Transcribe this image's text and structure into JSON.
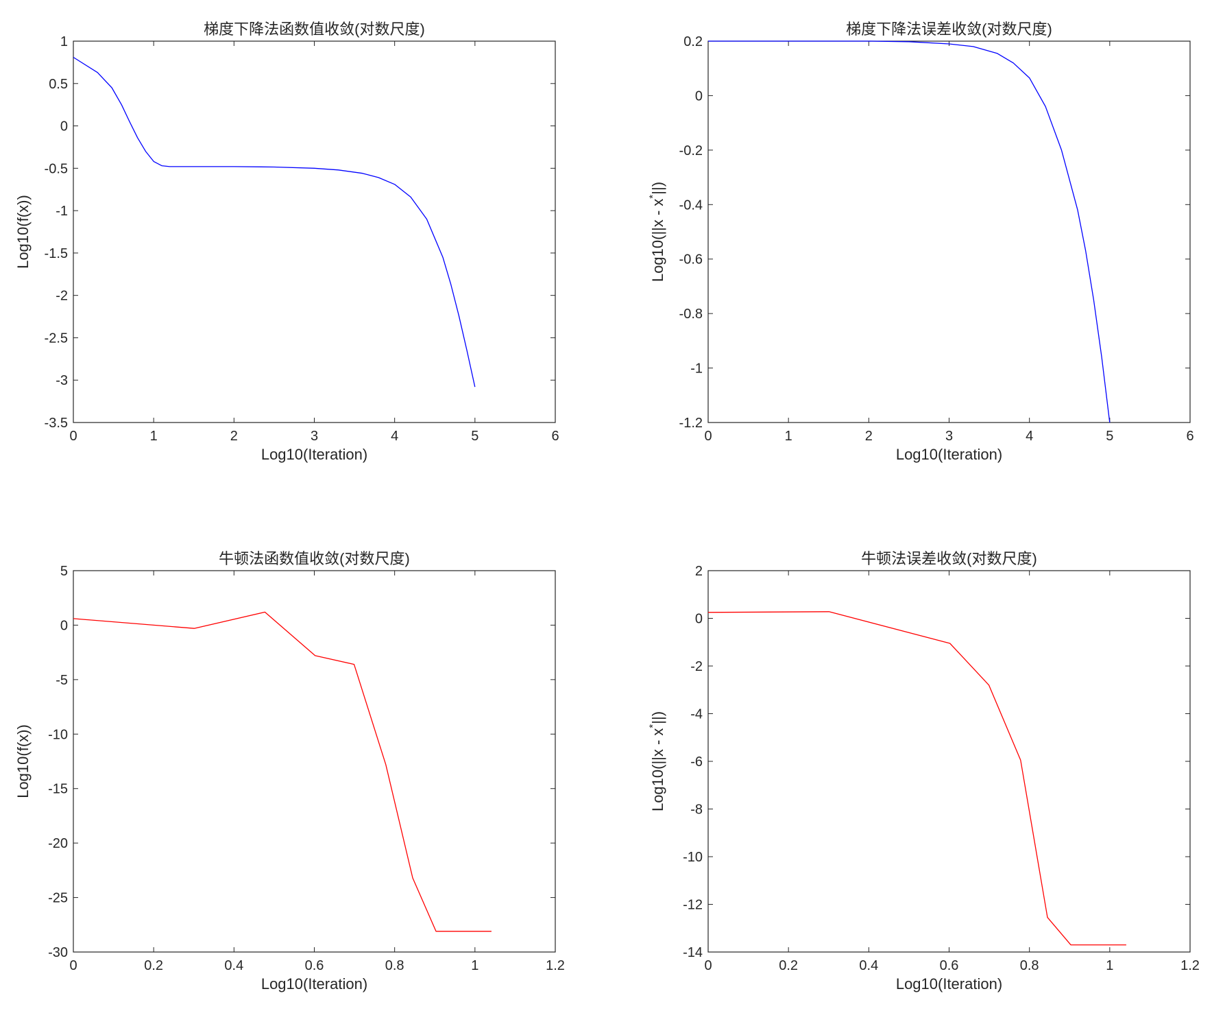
{
  "chart_data": [
    {
      "type": "line",
      "title": "梯度下降法函数值收敛(对数尺度)",
      "xlabel": "Log10(Iteration)",
      "ylabel": "Log10(f(x))",
      "ylabel_sup": "",
      "ylabel_tail": "",
      "xlim": [
        0,
        6
      ],
      "ylim": [
        -3.5,
        1
      ],
      "xticks": [
        "0",
        "1",
        "2",
        "3",
        "4",
        "5",
        "6"
      ],
      "yticks": [
        "1",
        "0.5",
        "0",
        "-0.5",
        "-1",
        "-1.5",
        "-2",
        "-2.5",
        "-3",
        "-3.5"
      ],
      "color": "#0000ff",
      "grid": false,
      "series": [
        {
          "x": [
            0,
            0.3,
            0.48,
            0.6,
            0.7,
            0.8,
            0.9,
            1.0,
            1.1,
            1.2,
            1.5,
            2.0,
            2.5,
            3.0,
            3.3,
            3.6,
            3.8,
            4.0,
            4.2,
            4.4,
            4.6,
            4.7,
            4.8,
            4.9,
            5.0
          ],
          "y": [
            0.81,
            0.63,
            0.45,
            0.25,
            0.05,
            -0.14,
            -0.3,
            -0.42,
            -0.47,
            -0.48,
            -0.48,
            -0.48,
            -0.485,
            -0.5,
            -0.52,
            -0.56,
            -0.61,
            -0.69,
            -0.84,
            -1.1,
            -1.55,
            -1.87,
            -2.24,
            -2.65,
            -3.08
          ]
        }
      ]
    },
    {
      "type": "line",
      "title": "梯度下降法误差收敛(对数尺度)",
      "xlabel": "Log10(Iteration)",
      "ylabel": "Log10(||x - x",
      "ylabel_sup": "*",
      "ylabel_tail": "||)",
      "xlim": [
        0,
        6
      ],
      "ylim": [
        -1.2,
        0.2
      ],
      "xticks": [
        "0",
        "1",
        "2",
        "3",
        "4",
        "5",
        "6"
      ],
      "yticks": [
        "0.2",
        "0",
        "-0.2",
        "-0.4",
        "-0.6",
        "-0.8",
        "-1",
        "-1.2"
      ],
      "color": "#0000ff",
      "grid": false,
      "series": [
        {
          "x": [
            0,
            1.0,
            2.0,
            2.5,
            3.0,
            3.3,
            3.6,
            3.8,
            4.0,
            4.2,
            4.4,
            4.6,
            4.7,
            4.8,
            4.9,
            5.0
          ],
          "y": [
            0.2,
            0.2,
            0.2,
            0.198,
            0.19,
            0.18,
            0.155,
            0.12,
            0.065,
            -0.04,
            -0.2,
            -0.42,
            -0.57,
            -0.75,
            -0.96,
            -1.2
          ]
        }
      ]
    },
    {
      "type": "line",
      "title": "牛顿法函数值收敛(对数尺度)",
      "xlabel": "Log10(Iteration)",
      "ylabel": "Log10(f(x))",
      "ylabel_sup": "",
      "ylabel_tail": "",
      "xlim": [
        0,
        1.2
      ],
      "ylim": [
        -30,
        5
      ],
      "xticks": [
        "0",
        "0.2",
        "0.4",
        "0.6",
        "0.8",
        "1",
        "1.2"
      ],
      "yticks": [
        "5",
        "0",
        "-5",
        "-10",
        "-15",
        "-20",
        "-25",
        "-30"
      ],
      "color": "#ff0000",
      "grid": false,
      "series": [
        {
          "x": [
            0,
            0.301,
            0.477,
            0.602,
            0.699,
            0.778,
            0.845,
            0.903,
            0.954,
            1.0,
            1.041
          ],
          "y": [
            0.6,
            -0.3,
            1.2,
            -2.8,
            -3.6,
            -12.8,
            -23.2,
            -28.1,
            -28.1,
            -28.1,
            -28.1
          ]
        }
      ]
    },
    {
      "type": "line",
      "title": "牛顿法误差收敛(对数尺度)",
      "xlabel": "Log10(Iteration)",
      "ylabel": "Log10(||x - x",
      "ylabel_sup": "*",
      "ylabel_tail": "||)",
      "xlim": [
        0,
        1.2
      ],
      "ylim": [
        -14,
        2
      ],
      "xticks": [
        "0",
        "0.2",
        "0.4",
        "0.6",
        "0.8",
        "1",
        "1.2"
      ],
      "yticks": [
        "2",
        "0",
        "-2",
        "-4",
        "-6",
        "-8",
        "-10",
        "-12",
        "-14"
      ],
      "color": "#ff0000",
      "grid": false,
      "series": [
        {
          "x": [
            0,
            0.301,
            0.602,
            0.699,
            0.778,
            0.845,
            0.903,
            0.954,
            1.0,
            1.041
          ],
          "y": [
            0.25,
            0.28,
            -1.05,
            -2.8,
            -5.95,
            -12.55,
            -13.7,
            -13.7,
            -13.7,
            -13.7
          ]
        }
      ]
    }
  ]
}
